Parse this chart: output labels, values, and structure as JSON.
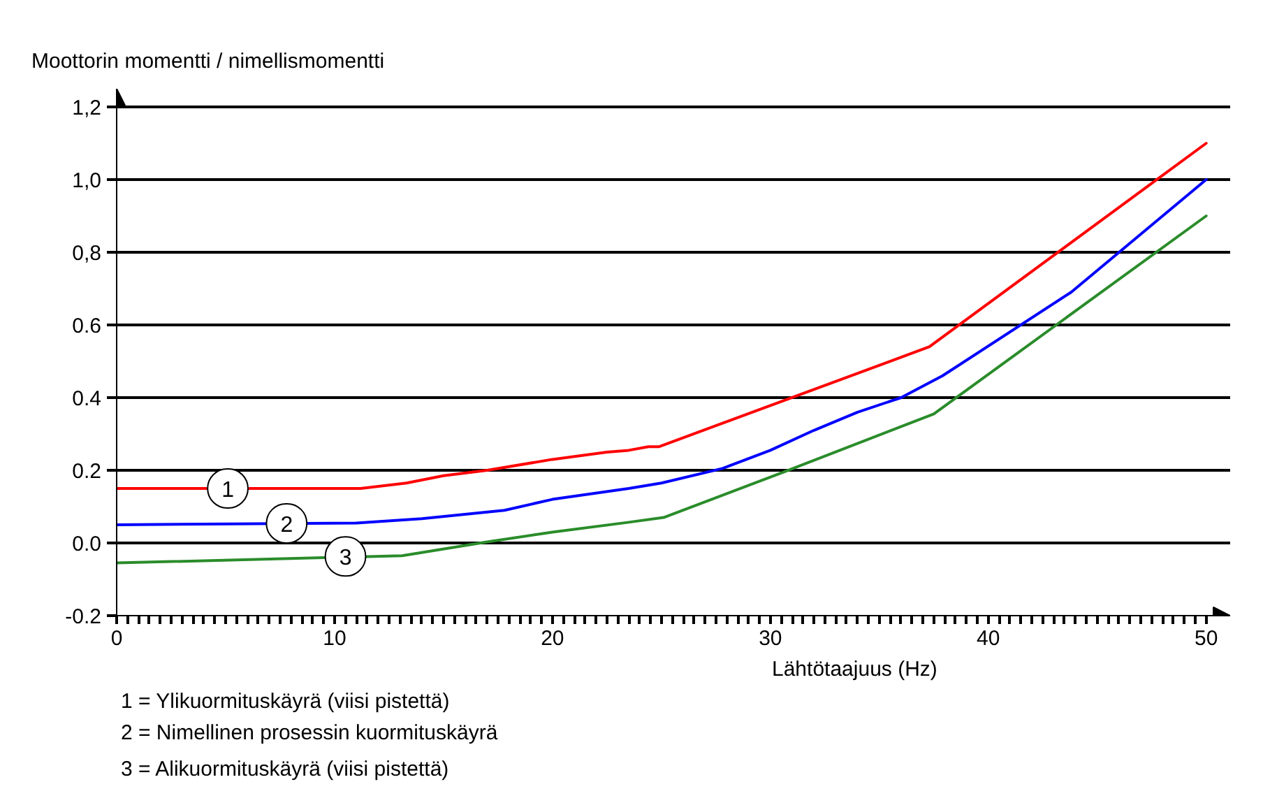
{
  "chart_data": {
    "type": "line",
    "xlabel": "Lähtötaajuus (Hz)",
    "ylabel": "Moottorin momentti / nimellismomentti",
    "xlim": [
      0,
      51.1
    ],
    "ylim": [
      -0.2,
      1.25
    ],
    "xticks": [
      0,
      10,
      20,
      30,
      40,
      50
    ],
    "yticks": [
      {
        "value": 1.2,
        "label": "1,2"
      },
      {
        "value": 1.0,
        "label": "1,0"
      },
      {
        "value": 0.8,
        "label": "0,8"
      },
      0.6,
      0.4,
      0.2,
      {
        "value": 0,
        "label": "0.0"
      },
      -0.2
    ],
    "grid": "y",
    "line_style": "solid",
    "series": [
      {
        "color": "#ff0000",
        "x": [
          0,
          11.2,
          13.3,
          15,
          17,
          20,
          22.5,
          23.5,
          24.4,
          24.9,
          37.3,
          50
        ],
        "values": [
          0.15,
          0.15,
          0.165,
          0.185,
          0.2,
          0.23,
          0.25,
          0.255,
          0.265,
          0.265,
          0.54,
          1.1
        ]
      },
      {
        "color": "#0000ff",
        "x": [
          0,
          11,
          14,
          17.8,
          20,
          23.5,
          25,
          27.8,
          30,
          32,
          34,
          36,
          37.9,
          43.8,
          50
        ],
        "values": [
          0.05,
          0.055,
          0.067,
          0.09,
          0.12,
          0.15,
          0.165,
          0.205,
          0.255,
          0.31,
          0.36,
          0.4,
          0.46,
          0.69,
          1.0
        ]
      },
      {
        "color": "#2a8c2a",
        "x": [
          0,
          13.1,
          17,
          20,
          23.5,
          25.1,
          30.6,
          37.5,
          50
        ],
        "values": [
          -0.055,
          -0.035,
          0.003,
          0.03,
          0.057,
          0.07,
          0.195,
          0.355,
          0.9
        ]
      }
    ],
    "annotations": [
      {
        "text": "1",
        "x": 5.1,
        "y": 0.15
      },
      {
        "text": "2",
        "x": 7.8,
        "y": 0.054
      },
      {
        "text": "3",
        "x": 10.5,
        "y": -0.037
      },
      "1 = Ylikuormituskäyrä (viisi pistettä)",
      "2 = Nimellinen prosessin kuormituskäyrä",
      "3 = Alikuormituskäyrä (viisi pistettä)"
    ]
  }
}
